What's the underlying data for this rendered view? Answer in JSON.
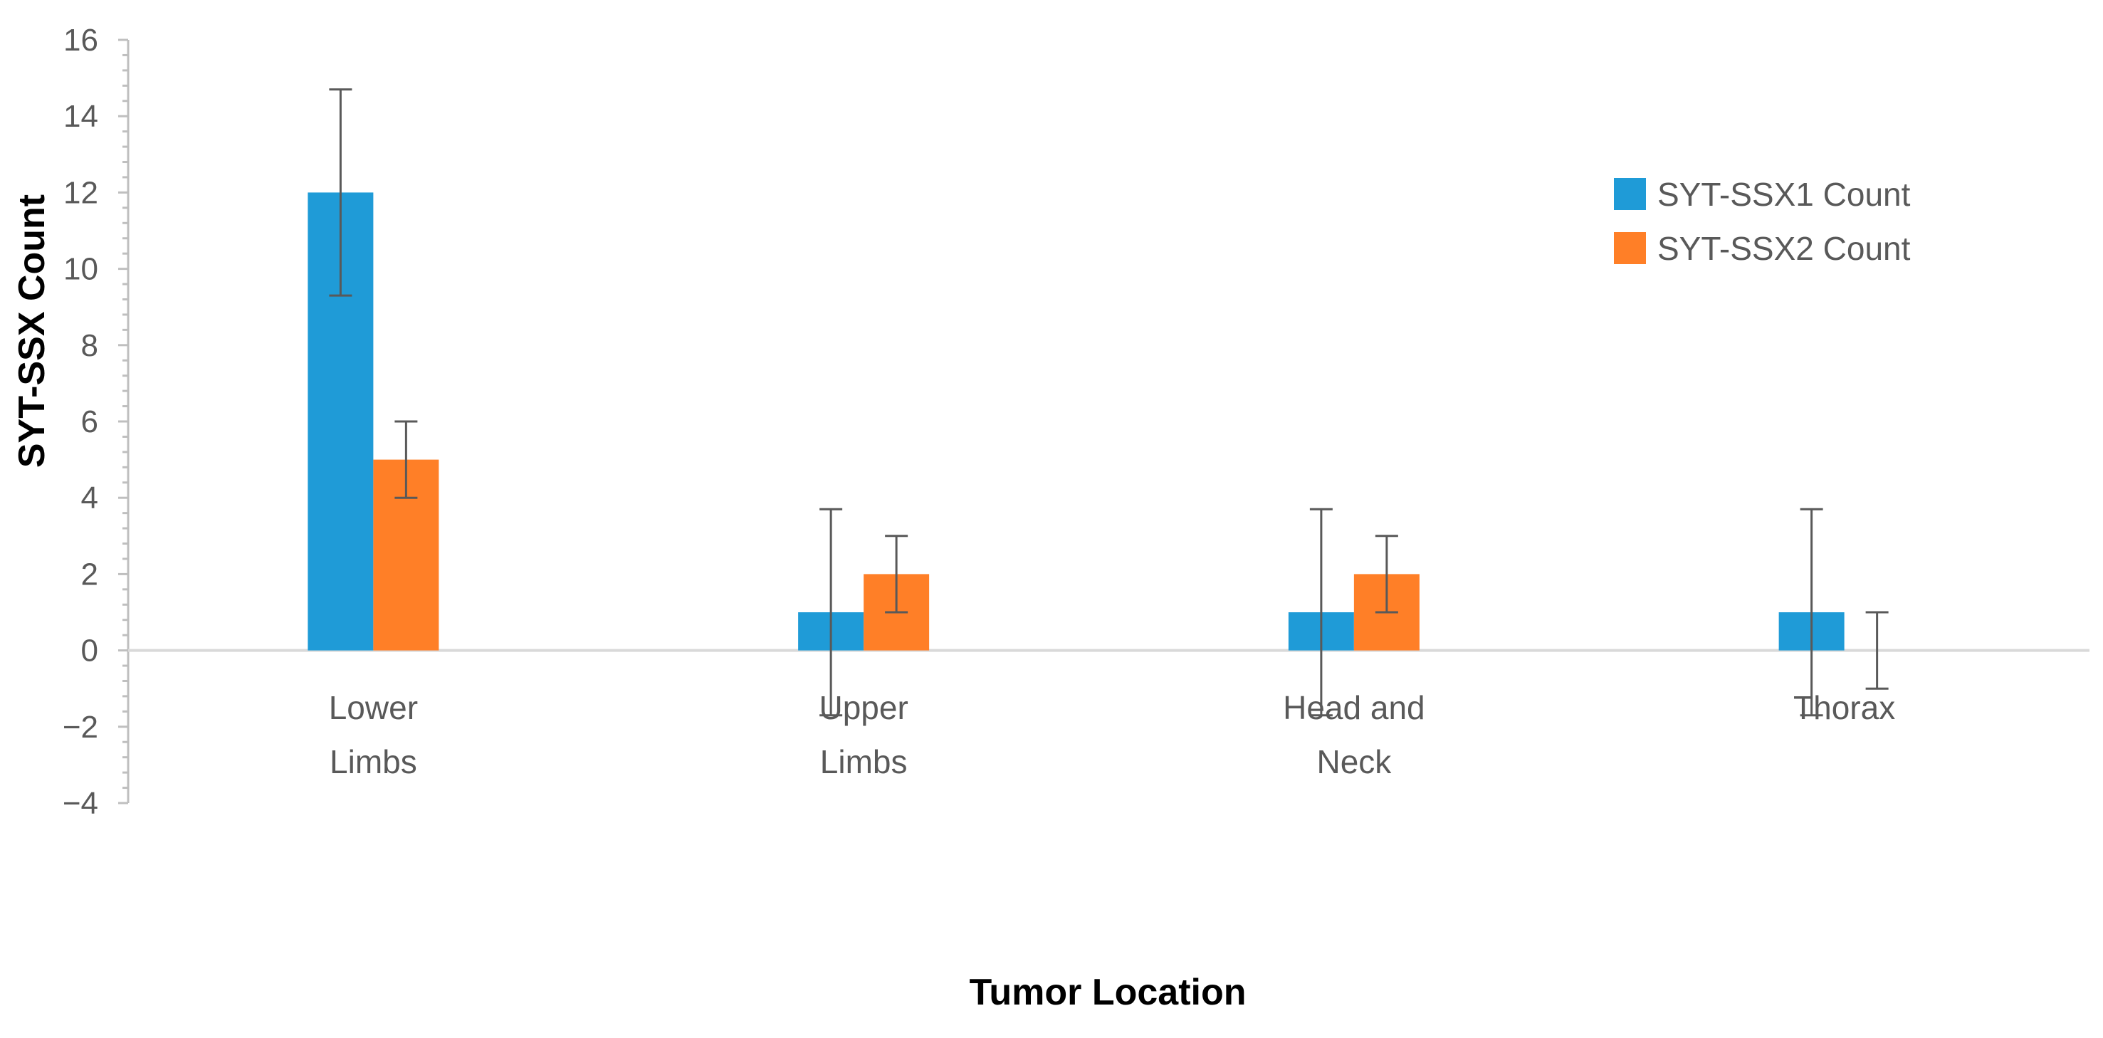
{
  "chart_data": {
    "type": "bar",
    "xlabel": "Tumor Location",
    "ylabel": "SYT-SSX Count",
    "ylim": [
      -4,
      16
    ],
    "yticks": [
      "-4",
      "-2",
      "0",
      "2",
      "4",
      "6",
      "8",
      "10",
      "12",
      "14",
      "16"
    ],
    "minor_ticks_per_major": 4,
    "grid": false,
    "legend_position": "top-right",
    "categories": [
      [
        "Lower",
        "Limbs"
      ],
      [
        "Upper",
        "Limbs"
      ],
      [
        "Head and",
        "Neck"
      ],
      [
        "Thorax"
      ]
    ],
    "series": [
      {
        "name": "SYT-SSX1 Count",
        "color": "#1F9BD7",
        "values": [
          12,
          1,
          1,
          1
        ],
        "error_low": [
          9.3,
          -1.7,
          -1.7,
          -1.7
        ],
        "error_high": [
          14.7,
          3.7,
          3.7,
          3.7
        ]
      },
      {
        "name": "SYT-SSX2 Count",
        "color": "#FF7F27",
        "values": [
          5,
          2,
          2,
          0
        ],
        "error_low": [
          4,
          1,
          1,
          -1
        ],
        "error_high": [
          6,
          3,
          3,
          1
        ]
      }
    ]
  }
}
